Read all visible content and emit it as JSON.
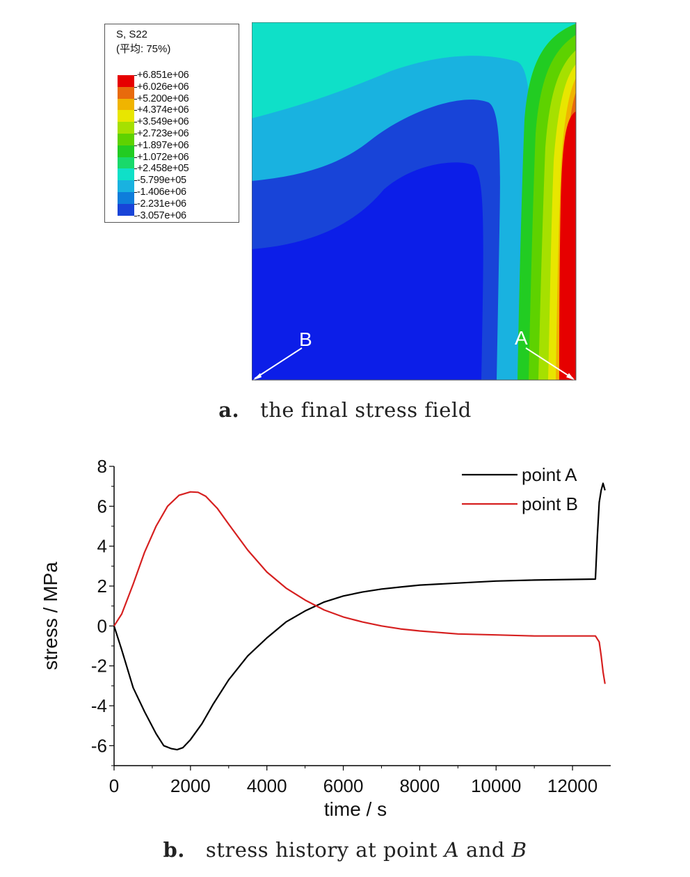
{
  "panel_a": {
    "legend": {
      "title_line1": "S, S22",
      "title_line2": "(平均: 75%)",
      "levels": [
        {
          "label": "+6.851e+06",
          "color": "#e60000"
        },
        {
          "label": "+6.026e+06",
          "color": "#e86a0c"
        },
        {
          "label": "+5.200e+06",
          "color": "#f0b400"
        },
        {
          "label": "+4.374e+06",
          "color": "#e8e600"
        },
        {
          "label": "+3.549e+06",
          "color": "#a6e000"
        },
        {
          "label": "+2.723e+06",
          "color": "#5ed200"
        },
        {
          "label": "+1.897e+06",
          "color": "#22cc22"
        },
        {
          "label": "+1.072e+06",
          "color": "#19d96b"
        },
        {
          "label": "+2.458e+05",
          "color": "#0fe0c8"
        },
        {
          "label": "-5.799e+05",
          "color": "#19b2e0"
        },
        {
          "label": "-1.406e+06",
          "color": "#0e7ddb"
        },
        {
          "label": "-2.231e+06",
          "color": "#1844d8"
        },
        {
          "label": "-3.057e+06",
          "color": "#0c1ee8"
        }
      ]
    },
    "point_a_label": "A",
    "point_b_label": "B",
    "caption_tag": "a.",
    "caption_text": "the final stress field"
  },
  "chart_data": {
    "type": "line",
    "xlabel": "time / s",
    "ylabel": "stress / MPa",
    "xlim": [
      0,
      13000
    ],
    "ylim": [
      -7,
      8
    ],
    "xticks": [
      0,
      2000,
      4000,
      6000,
      8000,
      10000,
      12000
    ],
    "yticks": [
      -6,
      -4,
      -2,
      0,
      2,
      4,
      6,
      8
    ],
    "legend_position": "top-right",
    "series": [
      {
        "name": "point A",
        "color": "#000000",
        "x": [
          0,
          200,
          500,
          800,
          1100,
          1300,
          1500,
          1650,
          1800,
          2000,
          2300,
          2600,
          3000,
          3500,
          4000,
          4500,
          5000,
          5500,
          6000,
          6500,
          7000,
          7500,
          8000,
          9000,
          10000,
          11000,
          12000,
          12600,
          12650,
          12700,
          12750,
          12800,
          12850
        ],
        "y": [
          0,
          -1.2,
          -3.1,
          -4.3,
          -5.4,
          -6.0,
          -6.15,
          -6.2,
          -6.1,
          -5.7,
          -4.9,
          -3.9,
          -2.7,
          -1.5,
          -0.6,
          0.2,
          0.75,
          1.2,
          1.5,
          1.7,
          1.85,
          1.95,
          2.05,
          2.15,
          2.25,
          2.3,
          2.33,
          2.35,
          4.5,
          6.2,
          6.8,
          7.15,
          6.8
        ]
      },
      {
        "name": "point B",
        "color": "#d62020",
        "x": [
          0,
          200,
          500,
          800,
          1100,
          1400,
          1700,
          2000,
          2200,
          2400,
          2700,
          3000,
          3500,
          4000,
          4500,
          5000,
          5500,
          6000,
          6500,
          7000,
          7500,
          8000,
          9000,
          10000,
          11000,
          12000,
          12600,
          12700,
          12750,
          12800,
          12850
        ],
        "y": [
          0,
          0.6,
          2.1,
          3.7,
          5.0,
          6.0,
          6.55,
          6.72,
          6.7,
          6.5,
          5.9,
          5.1,
          3.8,
          2.7,
          1.9,
          1.3,
          0.8,
          0.45,
          0.2,
          0.0,
          -0.15,
          -0.25,
          -0.4,
          -0.45,
          -0.5,
          -0.5,
          -0.5,
          -0.8,
          -1.5,
          -2.3,
          -2.9
        ]
      }
    ]
  },
  "panel_b": {
    "caption_tag": "b.",
    "caption_text_1": "stress history at point ",
    "caption_a": "A",
    "caption_and": " and ",
    "caption_b": "B"
  }
}
